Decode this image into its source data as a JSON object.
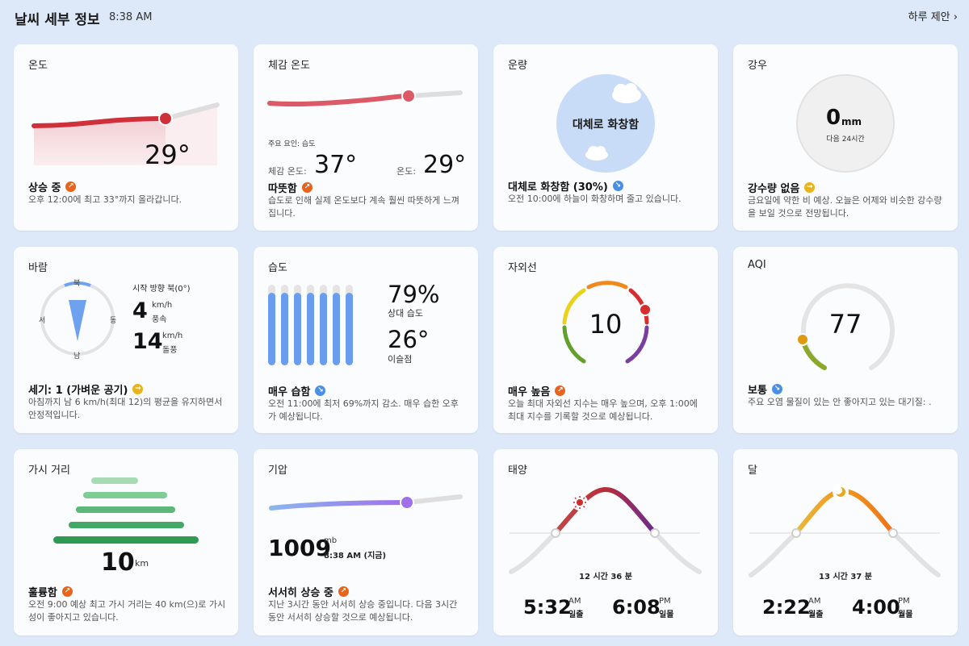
{
  "header": {
    "title": "날씨 세부 정보",
    "time": "8:38 AM",
    "day_link": "하루 제안",
    "day_link_chevron": "›"
  },
  "colors": {
    "background": "#dde8f8",
    "card": "#fbfcfe",
    "temp_line": "#d0303a",
    "feel_line": "#dc5a66",
    "humidity_bar": "#6a9cf0",
    "pressure_end": "#9a6ee8",
    "visibility_bar": "#3aa05a"
  },
  "cards": {
    "temperature": {
      "label": "온도",
      "value": "29°",
      "status": "상승 중",
      "status_icon": "trend-up-icon",
      "description": "오후 12:00에 최고 33°까지 올라갑니다."
    },
    "feels_like": {
      "label": "체감 온도",
      "factor": "주요 요인: 습도",
      "feels_label": "체감 온도:",
      "feels_value": "37°",
      "temp_label": "온도:",
      "temp_value": "29°",
      "status": "따뜻함",
      "status_icon": "trend-up-icon",
      "description": "습도로 인해 실제 온도보다 계속 훨씬 따뜻하게 느껴집니다."
    },
    "cloud": {
      "label": "운량",
      "center_text": "대체로 화창함",
      "status": "대체로 화창함 (30%)",
      "status_icon": "trend-down-icon",
      "description": "오전 10:00에 하늘이 화창하며 줄고 있습니다.",
      "cloud_cover_percent": 30
    },
    "precipitation": {
      "label": "강우",
      "value": "0",
      "unit": "mm",
      "sub": "다음 24시간",
      "status": "강수량 없음",
      "status_icon": "steady-icon",
      "description": "금요일에 약한 비 예상. 오늘은 어제와 비슷한 강수량을 보일 것으로 전망됩니다."
    },
    "wind": {
      "label": "바람",
      "direction_label": "시작 방향 북(0°)",
      "compass": {
        "n": "북",
        "s": "남",
        "e": "동",
        "w": "서"
      },
      "speed": "4",
      "speed_unit": "km/h",
      "speed_label": "풍속",
      "gust": "14",
      "gust_unit": "km/h",
      "gust_label": "돌풍",
      "status": "세기: 1 (가벼운 공기)",
      "status_icon": "steady-icon",
      "description": "아침까지 남 6 km/h(최대 12)의 평균을 유지하면서 안정적입니다."
    },
    "humidity": {
      "label": "습도",
      "value": "79%",
      "value_label": "상대 습도",
      "dew": "26°",
      "dew_label": "이슬점",
      "bar_levels": [
        0.9,
        0.9,
        0.9,
        0.9,
        0.9,
        0.9,
        0.9
      ],
      "status": "매우 습함",
      "status_icon": "trend-down-icon",
      "description": "오전 11:00에 최저 69%까지 감소. 매우 습한 오후가 예상됩니다."
    },
    "uv": {
      "label": "자외선",
      "value": "10",
      "status": "매우 높음",
      "status_icon": "trend-up-icon",
      "description": "오늘 최대 자외선 지수는 매우 높으며, 오후 1:00에 최대 지수를 기록할 것으로 예상됩니다."
    },
    "aqi": {
      "label": "AQI",
      "value": "77",
      "status": "보통",
      "status_icon": "trend-down-icon",
      "description": "주요 오염 물질이 있는 안 좋아지고 있는 대기질: ."
    },
    "visibility": {
      "label": "가시 거리",
      "value": "10",
      "unit": "km",
      "status": "훌륭함",
      "status_icon": "trend-up-icon",
      "description": "오전 9:00 예상 최고 가시 거리는 40 km(으)로 가시성이 좋아지고 있습니다."
    },
    "pressure": {
      "label": "기압",
      "value": "1009",
      "unit": "mb",
      "time": "8:38 AM (지금)",
      "status": "서서히 상승 중",
      "status_icon": "trend-up-icon",
      "description": "지난 3시간 동안 서서히 상승 중입니다. 다음 3시간 동안 서서히 상승할 것으로 예상됩니다."
    },
    "sun": {
      "label": "태양",
      "duration": "12 시간 36 분",
      "rise_time": "5:32",
      "rise_ampm": "AM",
      "rise_label": "일출",
      "set_time": "6:08",
      "set_ampm": "PM",
      "set_label": "일몰"
    },
    "moon": {
      "label": "달",
      "duration": "13 시간 37 분",
      "rise_time": "2:22",
      "rise_ampm": "AM",
      "rise_label": "월출",
      "set_time": "4:00",
      "set_ampm": "PM",
      "set_label": "월몰"
    }
  }
}
